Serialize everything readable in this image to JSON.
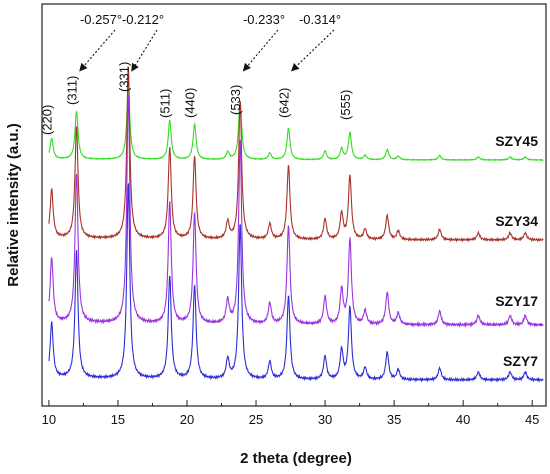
{
  "chart_data": {
    "type": "line",
    "xlabel": "2 theta (degree)",
    "ylabel": "Relative intensity (a.u.)",
    "xlim": [
      9.5,
      46
    ],
    "xticks": [
      10,
      15,
      20,
      25,
      30,
      35,
      40,
      45
    ],
    "peaks": [
      {
        "x": 10.2,
        "hkl": "(220)",
        "rel": 0.28
      },
      {
        "x": 12.0,
        "hkl": "(311)",
        "rel": 0.65
      },
      {
        "x": 15.75,
        "hkl": "(331)",
        "rel": 1.0
      },
      {
        "x": 18.75,
        "hkl": "(511)",
        "rel": 0.53
      },
      {
        "x": 20.55,
        "hkl": "(440)",
        "rel": 0.48
      },
      {
        "x": 22.95,
        "hkl": "",
        "rel": 0.1
      },
      {
        "x": 23.85,
        "hkl": "(533)",
        "rel": 0.8
      },
      {
        "x": 26.0,
        "hkl": "",
        "rel": 0.09
      },
      {
        "x": 27.35,
        "hkl": "(642)",
        "rel": 0.43
      },
      {
        "x": 30.0,
        "hkl": "",
        "rel": 0.12
      },
      {
        "x": 31.2,
        "hkl": "",
        "rel": 0.15
      },
      {
        "x": 31.8,
        "hkl": "(555)",
        "rel": 0.37
      },
      {
        "x": 32.9,
        "hkl": "",
        "rel": 0.06
      },
      {
        "x": 34.5,
        "hkl": "",
        "rel": 0.14
      },
      {
        "x": 35.3,
        "hkl": "",
        "rel": 0.05
      },
      {
        "x": 38.3,
        "hkl": "",
        "rel": 0.06
      },
      {
        "x": 41.1,
        "hkl": "",
        "rel": 0.04
      },
      {
        "x": 43.4,
        "hkl": "",
        "rel": 0.04
      },
      {
        "x": 44.5,
        "hkl": "",
        "rel": 0.04
      }
    ],
    "hkl_labels": [
      "(220)",
      "(311)",
      "(331)",
      "(511)",
      "(440)",
      "(533)",
      "(642)",
      "(555)"
    ],
    "shift_annotations": [
      {
        "text": "-0.257°",
        "target_x": 12.0
      },
      {
        "text": "-0.212°",
        "target_x": 15.75
      },
      {
        "text": "-0.233°",
        "target_x": 23.85
      },
      {
        "text": "-0.314°",
        "target_x": 27.35
      }
    ],
    "series": [
      {
        "name": "SZY45",
        "color": "#33dd22",
        "scale": 0.32
      },
      {
        "name": "SZY34",
        "color": "#a83228",
        "scale": 0.75
      },
      {
        "name": "SZY17",
        "color": "#9a33e0",
        "scale": 1.0
      },
      {
        "name": "SZY7",
        "color": "#2d2fd6",
        "scale": 0.85
      }
    ],
    "grid": false,
    "legend": "inline-right"
  }
}
